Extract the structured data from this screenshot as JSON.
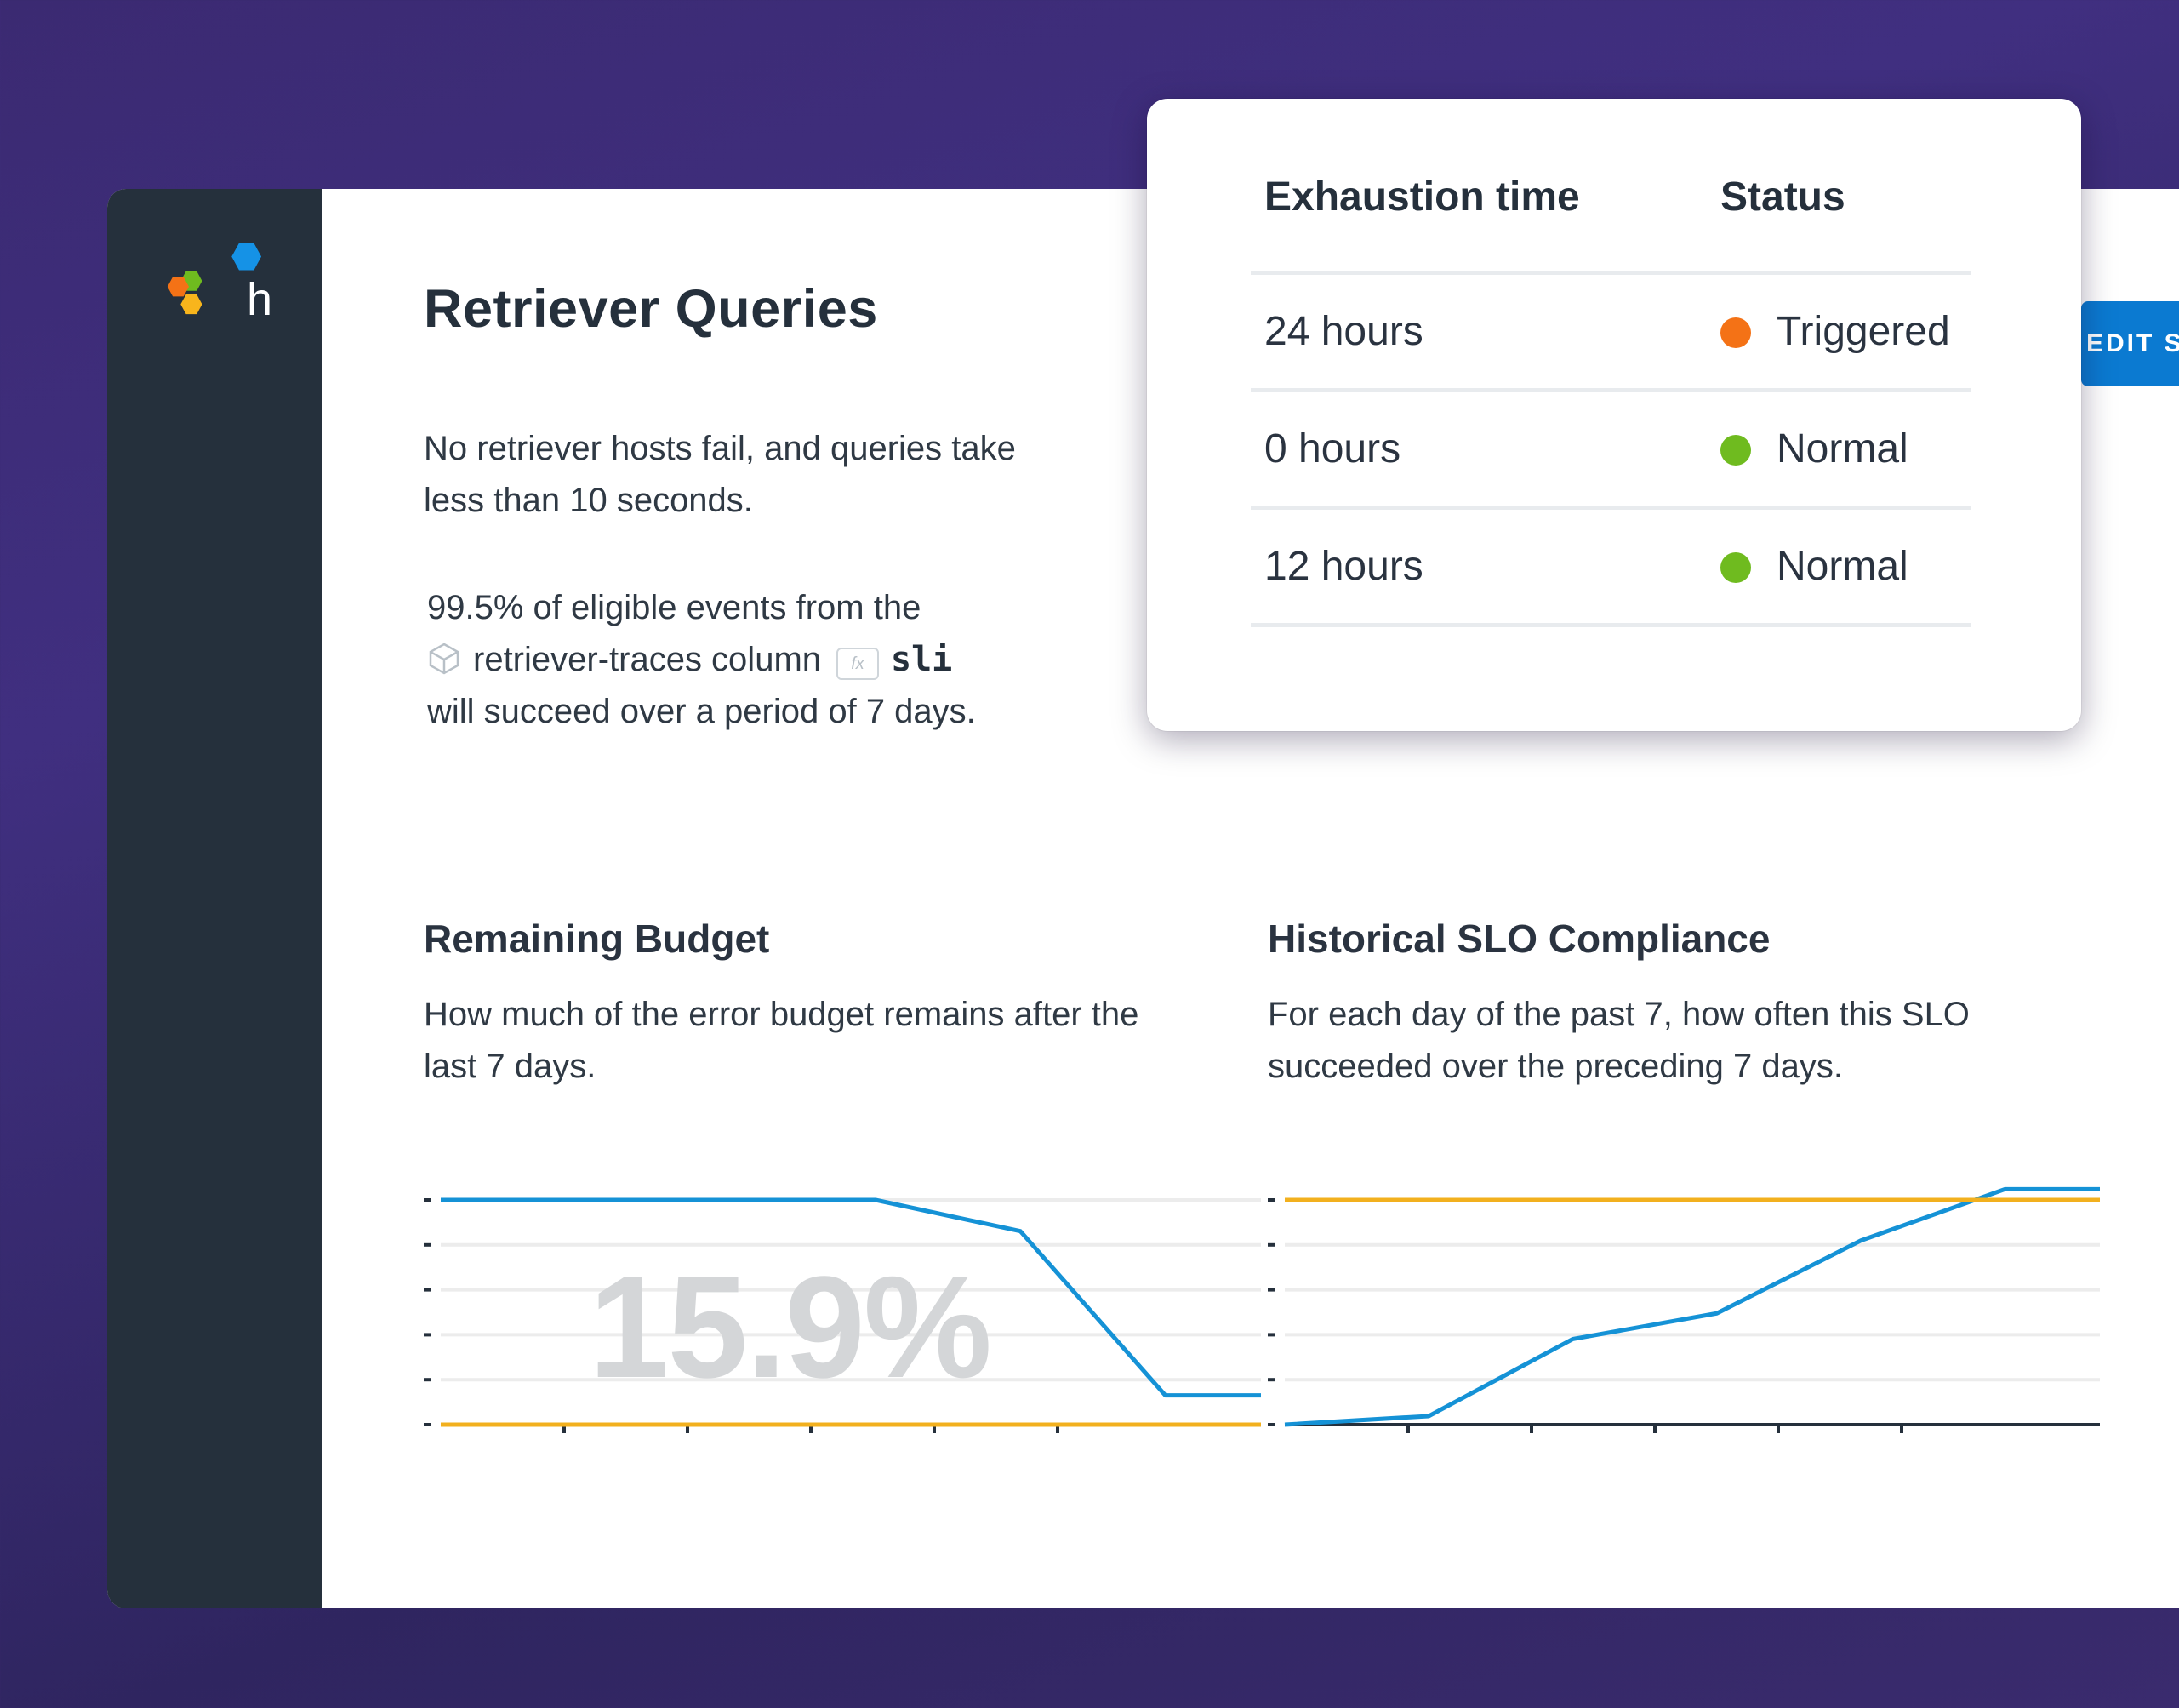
{
  "app": {
    "title": "Retriever Queries",
    "description": "No retriever hosts fail, and queries take less than 10 seconds.",
    "target": {
      "line1": "99.5% of eligible events from the",
      "dataset": "retriever-traces column",
      "fx_label": "fx",
      "column": "sli",
      "line3": "will succeed over a period of 7 days."
    },
    "edit_button": "EDIT SLO",
    "accent_color": "#0b7ad1"
  },
  "exhaustion_table": {
    "headers": [
      "Exhaustion time",
      "Status"
    ],
    "rows": [
      {
        "time": "24 hours",
        "status": "Triggered",
        "status_color": "#f47216"
      },
      {
        "time": "0 hours",
        "status": "Normal",
        "status_color": "#6fbb1f"
      },
      {
        "time": "12 hours",
        "status": "Normal",
        "status_color": "#6fbb1f"
      }
    ]
  },
  "remaining_budget": {
    "title": "Remaining Budget",
    "description": "How much of the error budget remains after the last 7 days.",
    "big_value": "15.9%"
  },
  "historical_compliance": {
    "title": "Historical SLO Compliance",
    "description": "For each day of the past 7, how often this SLO succeeded over the preceding 7 days."
  },
  "chart_data": [
    {
      "type": "line",
      "x": [
        0,
        1,
        2,
        3,
        4,
        5,
        5.66
      ],
      "series": [
        {
          "values": [
            100,
            100,
            100,
            100,
            84,
            0,
            0
          ],
          "color": "#1592d6"
        },
        {
          "values": [
            -15,
            -15,
            -15,
            -15,
            -15,
            -15,
            -15
          ],
          "color": "#f2b01e"
        }
      ],
      "ylim": [
        -15,
        100
      ],
      "grid": true,
      "color_scheme": {
        "grid": "#ececec",
        "tick": "#25303c"
      }
    },
    {
      "type": "line",
      "x": [
        0,
        1,
        2,
        3,
        4,
        5,
        5.66
      ],
      "series": [
        {
          "values": [
            0,
            4,
            40,
            52,
            86,
            110,
            110
          ],
          "color": "#1592d6"
        },
        {
          "values": [
            105,
            105,
            105,
            105,
            105,
            105,
            105
          ],
          "color": "#f2b01e"
        }
      ],
      "ylim": [
        0,
        105
      ],
      "grid": true,
      "color_scheme": {
        "grid": "#ececec",
        "tick": "#25303c",
        "baseline": "#25303c"
      }
    }
  ]
}
